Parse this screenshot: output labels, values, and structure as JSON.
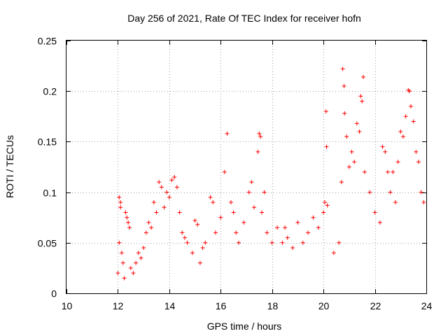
{
  "chart_data": {
    "type": "scatter",
    "title": "Day 256 of 2021, Rate Of TEC Index for receiver hofn",
    "xlabel": "GPS time / hours",
    "ylabel": "ROTI / TECUs",
    "xlim": [
      10,
      24
    ],
    "ylim": [
      0,
      0.25
    ],
    "x_ticks": [
      10,
      12,
      14,
      16,
      18,
      20,
      22,
      24
    ],
    "x_tick_labels": [
      "10",
      "12",
      "14",
      "16",
      "18",
      "20",
      "22",
      "24"
    ],
    "y_ticks": [
      0,
      0.05,
      0.1,
      0.15,
      0.2,
      0.25
    ],
    "y_tick_labels": [
      "0",
      "0.05",
      "0.1",
      "0.15",
      "0.2",
      "0.25"
    ],
    "grid": true,
    "marker": "+",
    "marker_color": "#ff0000",
    "series": [
      {
        "points": [
          [
            12.0,
            0.02
          ],
          [
            12.05,
            0.05
          ],
          [
            12.05,
            0.095
          ],
          [
            12.1,
            0.09
          ],
          [
            12.1,
            0.085
          ],
          [
            12.15,
            0.04
          ],
          [
            12.2,
            0.03
          ],
          [
            12.25,
            0.015
          ],
          [
            12.3,
            0.08
          ],
          [
            12.35,
            0.075
          ],
          [
            12.4,
            0.07
          ],
          [
            12.45,
            0.065
          ],
          [
            12.5,
            0.025
          ],
          [
            12.6,
            0.02
          ],
          [
            12.7,
            0.03
          ],
          [
            12.8,
            0.04
          ],
          [
            12.9,
            0.035
          ],
          [
            13.0,
            0.045
          ],
          [
            13.1,
            0.06
          ],
          [
            13.2,
            0.07
          ],
          [
            13.3,
            0.065
          ],
          [
            13.4,
            0.09
          ],
          [
            13.5,
            0.08
          ],
          [
            13.6,
            0.11
          ],
          [
            13.7,
            0.105
          ],
          [
            13.8,
            0.085
          ],
          [
            13.9,
            0.1
          ],
          [
            14.0,
            0.095
          ],
          [
            14.1,
            0.112
          ],
          [
            14.2,
            0.115
          ],
          [
            14.3,
            0.105
          ],
          [
            14.4,
            0.08
          ],
          [
            14.5,
            0.06
          ],
          [
            14.6,
            0.055
          ],
          [
            14.7,
            0.05
          ],
          [
            14.9,
            0.04
          ],
          [
            15.0,
            0.072
          ],
          [
            15.1,
            0.068
          ],
          [
            15.2,
            0.03
          ],
          [
            15.3,
            0.045
          ],
          [
            15.4,
            0.05
          ],
          [
            15.6,
            0.095
          ],
          [
            15.7,
            0.09
          ],
          [
            15.8,
            0.06
          ],
          [
            16.0,
            0.075
          ],
          [
            16.15,
            0.12
          ],
          [
            16.25,
            0.158
          ],
          [
            16.4,
            0.09
          ],
          [
            16.5,
            0.08
          ],
          [
            16.6,
            0.06
          ],
          [
            16.7,
            0.05
          ],
          [
            16.9,
            0.07
          ],
          [
            17.1,
            0.1
          ],
          [
            17.2,
            0.11
          ],
          [
            17.3,
            0.085
          ],
          [
            17.45,
            0.14
          ],
          [
            17.5,
            0.158
          ],
          [
            17.55,
            0.155
          ],
          [
            17.6,
            0.08
          ],
          [
            17.7,
            0.1
          ],
          [
            17.8,
            0.06
          ],
          [
            18.0,
            0.05
          ],
          [
            18.2,
            0.065
          ],
          [
            18.4,
            0.05
          ],
          [
            18.5,
            0.065
          ],
          [
            18.6,
            0.055
          ],
          [
            18.8,
            0.045
          ],
          [
            19.0,
            0.07
          ],
          [
            19.2,
            0.05
          ],
          [
            19.4,
            0.06
          ],
          [
            19.6,
            0.075
          ],
          [
            19.8,
            0.065
          ],
          [
            20.0,
            0.08
          ],
          [
            20.05,
            0.09
          ],
          [
            20.1,
            0.18
          ],
          [
            20.12,
            0.145
          ],
          [
            20.15,
            0.087
          ],
          [
            20.4,
            0.04
          ],
          [
            20.6,
            0.05
          ],
          [
            20.7,
            0.11
          ],
          [
            20.75,
            0.222
          ],
          [
            20.8,
            0.205
          ],
          [
            20.82,
            0.178
          ],
          [
            20.9,
            0.155
          ],
          [
            21.0,
            0.125
          ],
          [
            21.1,
            0.14
          ],
          [
            21.2,
            0.13
          ],
          [
            21.3,
            0.168
          ],
          [
            21.4,
            0.16
          ],
          [
            21.45,
            0.195
          ],
          [
            21.5,
            0.19
          ],
          [
            21.55,
            0.214
          ],
          [
            21.6,
            0.12
          ],
          [
            21.8,
            0.1
          ],
          [
            22.0,
            0.08
          ],
          [
            22.2,
            0.07
          ],
          [
            22.3,
            0.145
          ],
          [
            22.4,
            0.14
          ],
          [
            22.5,
            0.12
          ],
          [
            22.6,
            0.1
          ],
          [
            22.7,
            0.12
          ],
          [
            22.8,
            0.09
          ],
          [
            22.9,
            0.13
          ],
          [
            23.0,
            0.16
          ],
          [
            23.1,
            0.155
          ],
          [
            23.2,
            0.175
          ],
          [
            23.3,
            0.201
          ],
          [
            23.35,
            0.2
          ],
          [
            23.4,
            0.185
          ],
          [
            23.5,
            0.17
          ],
          [
            23.6,
            0.14
          ],
          [
            23.7,
            0.13
          ],
          [
            23.8,
            0.1
          ],
          [
            23.9,
            0.09
          ]
        ]
      }
    ]
  }
}
